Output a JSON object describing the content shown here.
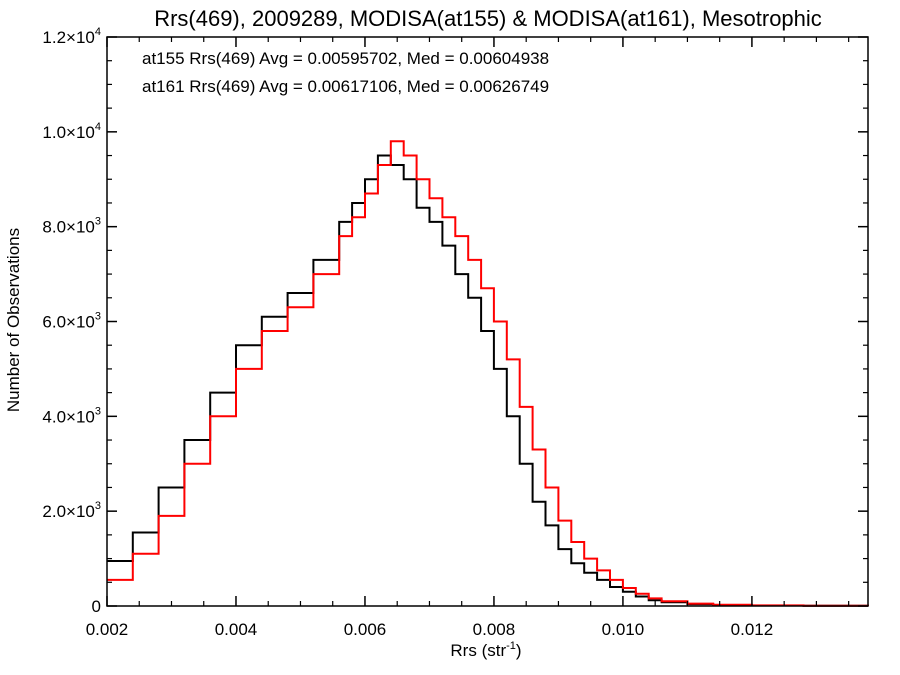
{
  "chart_data": {
    "type": "line",
    "title": "Rrs(469), 2009289, MODISA(at155) & MODISA(at161), Mesotrophic",
    "xlabel": "Rrs (str",
    "xlabel_sup": "-1",
    "xlabel_end": ")",
    "ylabel": "Number of Observations",
    "xlim": [
      0.002,
      0.0138
    ],
    "ylim": [
      0,
      12000
    ],
    "x_ticks": [
      {
        "value": 0.002,
        "label": "0.002"
      },
      {
        "value": 0.004,
        "label": "0.004"
      },
      {
        "value": 0.006,
        "label": "0.006"
      },
      {
        "value": 0.008,
        "label": "0.008"
      },
      {
        "value": 0.01,
        "label": "0.010"
      },
      {
        "value": 0.012,
        "label": "0.012"
      }
    ],
    "y_ticks": [
      {
        "value": 0,
        "mant": "0",
        "exp": ""
      },
      {
        "value": 2000,
        "mant": "2.0×10",
        "exp": "3"
      },
      {
        "value": 4000,
        "mant": "4.0×10",
        "exp": "3"
      },
      {
        "value": 6000,
        "mant": "6.0×10",
        "exp": "3"
      },
      {
        "value": 8000,
        "mant": "8.0×10",
        "exp": "3"
      },
      {
        "value": 10000,
        "mant": "1.0×10",
        "exp": "4"
      },
      {
        "value": 12000,
        "mant": "1.2×10",
        "exp": "4"
      }
    ],
    "grid": false,
    "step": true,
    "series": [
      {
        "name": "at155",
        "color": "#000000",
        "annotation": "at155 Rrs(469) Avg = 0.00595702, Med = 0.00604938",
        "points": [
          [
            0.002,
            950
          ],
          [
            0.0024,
            1550
          ],
          [
            0.0028,
            2500
          ],
          [
            0.0032,
            3500
          ],
          [
            0.0036,
            4500
          ],
          [
            0.004,
            5500
          ],
          [
            0.0044,
            6100
          ],
          [
            0.0048,
            6600
          ],
          [
            0.0052,
            7300
          ],
          [
            0.0056,
            8100
          ],
          [
            0.0058,
            8500
          ],
          [
            0.006,
            9000
          ],
          [
            0.0062,
            9500
          ],
          [
            0.0064,
            9300
          ],
          [
            0.0066,
            9000
          ],
          [
            0.0068,
            8400
          ],
          [
            0.007,
            8100
          ],
          [
            0.0072,
            7600
          ],
          [
            0.0074,
            7000
          ],
          [
            0.0076,
            6500
          ],
          [
            0.0078,
            5800
          ],
          [
            0.008,
            5000
          ],
          [
            0.0082,
            4000
          ],
          [
            0.0084,
            3000
          ],
          [
            0.0086,
            2200
          ],
          [
            0.0088,
            1700
          ],
          [
            0.009,
            1200
          ],
          [
            0.0092,
            900
          ],
          [
            0.0094,
            700
          ],
          [
            0.0096,
            550
          ],
          [
            0.0098,
            400
          ],
          [
            0.01,
            300
          ],
          [
            0.0102,
            200
          ],
          [
            0.0104,
            120
          ],
          [
            0.0106,
            80
          ],
          [
            0.011,
            40
          ],
          [
            0.0114,
            20
          ],
          [
            0.012,
            10
          ],
          [
            0.0128,
            5
          ],
          [
            0.0138,
            2
          ]
        ]
      },
      {
        "name": "at161",
        "color": "#ff0000",
        "annotation": "at161 Rrs(469) Avg = 0.00617106, Med = 0.00626749",
        "points": [
          [
            0.002,
            550
          ],
          [
            0.0024,
            1100
          ],
          [
            0.0028,
            1900
          ],
          [
            0.0032,
            3000
          ],
          [
            0.0036,
            4000
          ],
          [
            0.004,
            5000
          ],
          [
            0.0044,
            5800
          ],
          [
            0.0048,
            6300
          ],
          [
            0.0052,
            7000
          ],
          [
            0.0056,
            7800
          ],
          [
            0.0058,
            8200
          ],
          [
            0.006,
            8700
          ],
          [
            0.0062,
            9300
          ],
          [
            0.0064,
            9800
          ],
          [
            0.0066,
            9500
          ],
          [
            0.0068,
            9000
          ],
          [
            0.007,
            8600
          ],
          [
            0.0072,
            8200
          ],
          [
            0.0074,
            7800
          ],
          [
            0.0076,
            7300
          ],
          [
            0.0078,
            6700
          ],
          [
            0.008,
            6000
          ],
          [
            0.0082,
            5200
          ],
          [
            0.0084,
            4200
          ],
          [
            0.0086,
            3300
          ],
          [
            0.0088,
            2500
          ],
          [
            0.009,
            1800
          ],
          [
            0.0092,
            1350
          ],
          [
            0.0094,
            1000
          ],
          [
            0.0096,
            750
          ],
          [
            0.0098,
            550
          ],
          [
            0.01,
            380
          ],
          [
            0.0102,
            260
          ],
          [
            0.0104,
            160
          ],
          [
            0.0106,
            100
          ],
          [
            0.011,
            50
          ],
          [
            0.0114,
            25
          ],
          [
            0.012,
            12
          ],
          [
            0.0128,
            6
          ],
          [
            0.0138,
            2
          ]
        ]
      }
    ]
  }
}
